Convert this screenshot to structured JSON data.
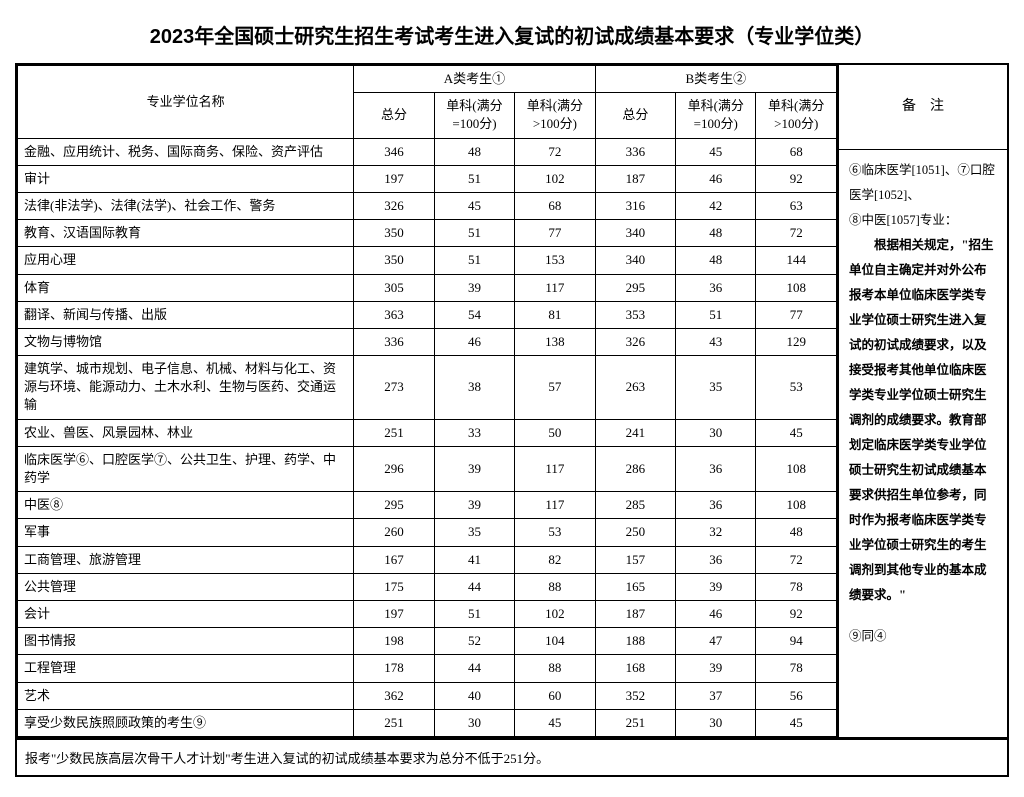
{
  "title": "2023年全国硕士研究生招生考试考生进入复试的初试成绩基本要求（专业学位类）",
  "headers": {
    "name": "专业学位名称",
    "groupA": "A类考生①",
    "groupB": "B类考生②",
    "total": "总分",
    "sub100": "单科(满分=100分)",
    "subOver100": "单科(满分>100分)",
    "remarks": "备　注"
  },
  "rows": [
    {
      "name": "金融、应用统计、税务、国际商务、保险、资产评估",
      "a": [
        346,
        48,
        72
      ],
      "b": [
        336,
        45,
        68
      ]
    },
    {
      "name": "审计",
      "a": [
        197,
        51,
        102
      ],
      "b": [
        187,
        46,
        92
      ]
    },
    {
      "name": "法律(非法学)、法律(法学)、社会工作、警务",
      "a": [
        326,
        45,
        68
      ],
      "b": [
        316,
        42,
        63
      ]
    },
    {
      "name": "教育、汉语国际教育",
      "a": [
        350,
        51,
        77
      ],
      "b": [
        340,
        48,
        72
      ]
    },
    {
      "name": "应用心理",
      "a": [
        350,
        51,
        153
      ],
      "b": [
        340,
        48,
        144
      ]
    },
    {
      "name": "体育",
      "a": [
        305,
        39,
        117
      ],
      "b": [
        295,
        36,
        108
      ]
    },
    {
      "name": "翻译、新闻与传播、出版",
      "a": [
        363,
        54,
        81
      ],
      "b": [
        353,
        51,
        77
      ]
    },
    {
      "name": "文物与博物馆",
      "a": [
        336,
        46,
        138
      ],
      "b": [
        326,
        43,
        129
      ]
    },
    {
      "name": "建筑学、城市规划、电子信息、机械、材料与化工、资源与环境、能源动力、土木水利、生物与医药、交通运输",
      "a": [
        273,
        38,
        57
      ],
      "b": [
        263,
        35,
        53
      ]
    },
    {
      "name": "农业、兽医、风景园林、林业",
      "a": [
        251,
        33,
        50
      ],
      "b": [
        241,
        30,
        45
      ]
    },
    {
      "name": "临床医学⑥、口腔医学⑦、公共卫生、护理、药学、中药学",
      "a": [
        296,
        39,
        117
      ],
      "b": [
        286,
        36,
        108
      ]
    },
    {
      "name": "中医⑧",
      "a": [
        295,
        39,
        117
      ],
      "b": [
        285,
        36,
        108
      ]
    },
    {
      "name": "军事",
      "a": [
        260,
        35,
        53
      ],
      "b": [
        250,
        32,
        48
      ]
    },
    {
      "name": "工商管理、旅游管理",
      "a": [
        167,
        41,
        82
      ],
      "b": [
        157,
        36,
        72
      ]
    },
    {
      "name": "公共管理",
      "a": [
        175,
        44,
        88
      ],
      "b": [
        165,
        39,
        78
      ]
    },
    {
      "name": "会计",
      "a": [
        197,
        51,
        102
      ],
      "b": [
        187,
        46,
        92
      ]
    },
    {
      "name": "图书情报",
      "a": [
        198,
        52,
        104
      ],
      "b": [
        188,
        47,
        94
      ]
    },
    {
      "name": "工程管理",
      "a": [
        178,
        44,
        88
      ],
      "b": [
        168,
        39,
        78
      ]
    },
    {
      "name": "艺术",
      "a": [
        362,
        40,
        60
      ],
      "b": [
        352,
        37,
        56
      ]
    },
    {
      "name": "享受少数民族照顾政策的考生⑨",
      "a": [
        251,
        30,
        45
      ],
      "b": [
        251,
        30,
        45
      ]
    }
  ],
  "remarks": {
    "line1": "⑥临床医学[1051]、⑦口腔医学[1052]、",
    "line2": "⑧中医[1057]专业：",
    "para": "　　根据相关规定，\"招生单位自主确定并对外公布报考本单位临床医学类专业学位硕士研究生进入复试的初试成绩要求，以及接受报考其他单位临床医学类专业学位硕士研究生调剂的成绩要求。教育部划定临床医学类专业学位硕士研究生初试成绩基本要求供招生单位参考，同时作为报考临床医学类专业学位硕士研究生的考生调剂到其他专业的基本成绩要求。\"",
    "line3": "⑨同④"
  },
  "footnote": "报考\"少数民族高层次骨干人才计划\"考生进入复试的初试成绩基本要求为总分不低于251分。"
}
